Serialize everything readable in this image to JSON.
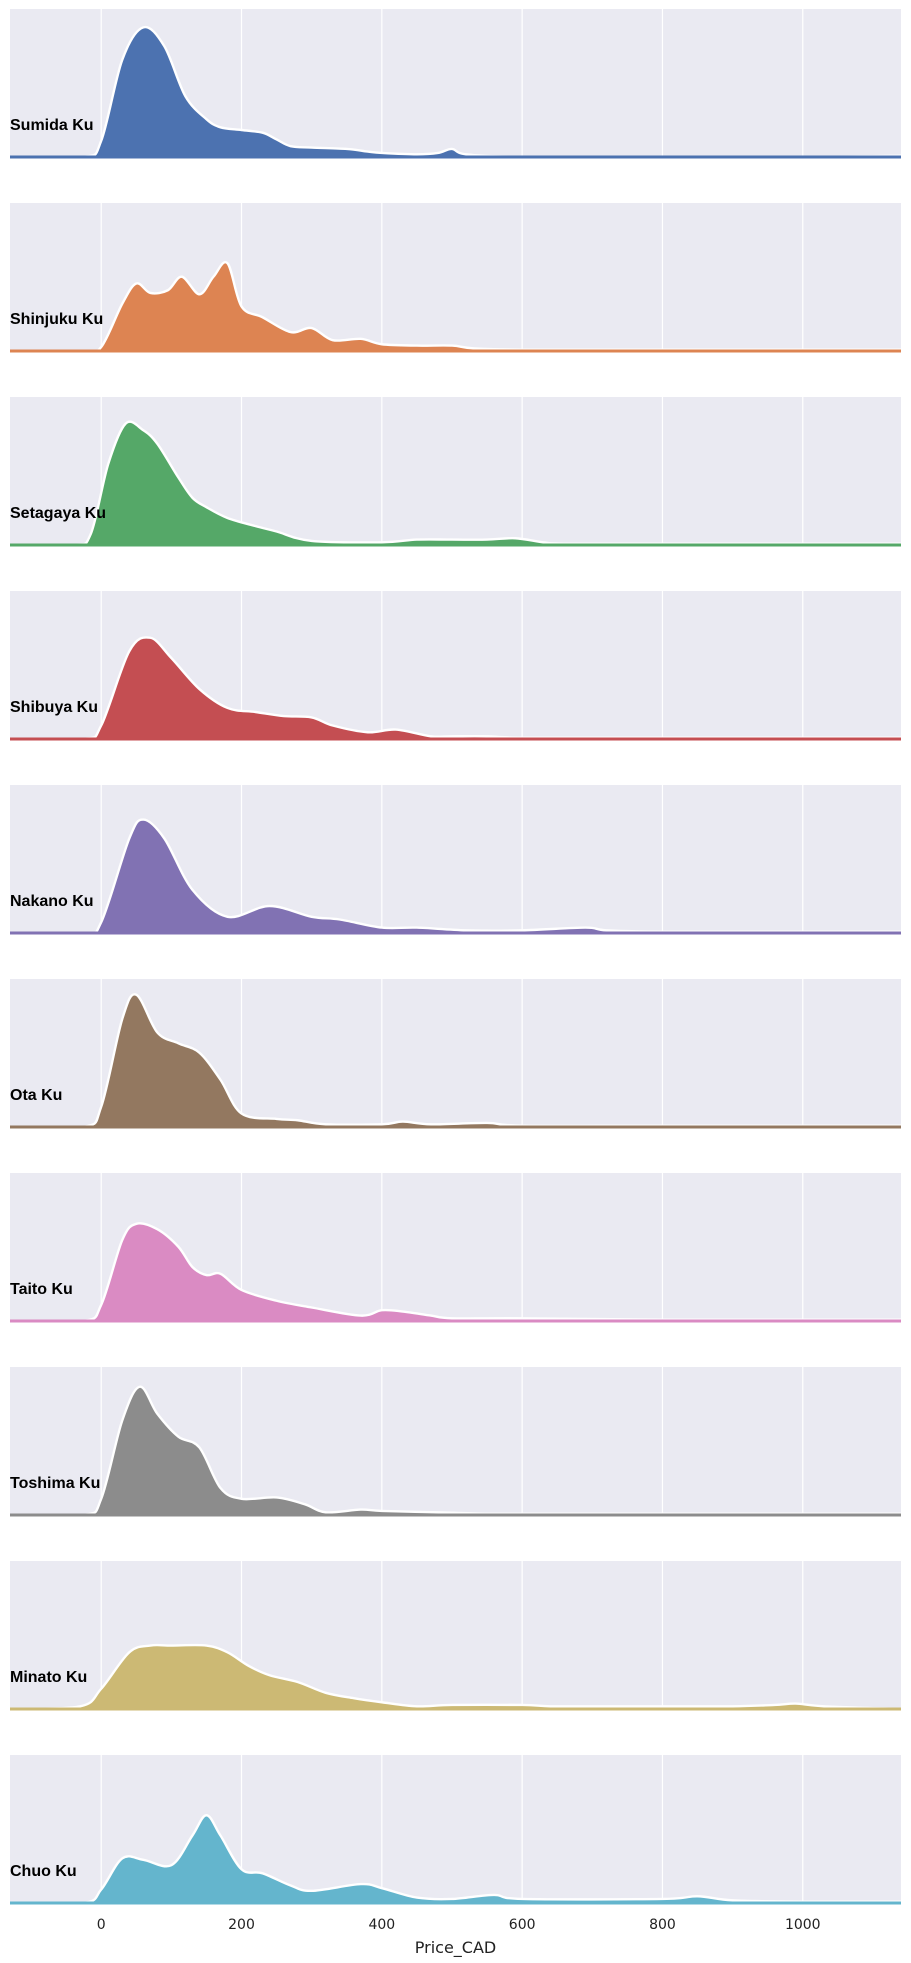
{
  "chart_data": {
    "type": "area",
    "xlabel": "Price_CAD",
    "xlim": [
      -130,
      1140
    ],
    "xticks": [
      0,
      200,
      400,
      600,
      800,
      1000
    ],
    "tick_labels": [
      "0",
      "200",
      "400",
      "600",
      "800",
      "1000"
    ],
    "grid": true,
    "series": [
      {
        "name": "Sumida Ku",
        "color": "#4c72b0",
        "x": [
          -130,
          -25,
          0,
          30,
          60,
          90,
          120,
          150,
          170,
          200,
          230,
          250,
          270,
          300,
          350,
          380,
          400,
          450,
          480,
          500,
          520,
          600,
          800,
          1000,
          1140
        ],
        "y": [
          0.0,
          0.0,
          0.12,
          0.72,
          0.96,
          0.82,
          0.45,
          0.28,
          0.22,
          0.2,
          0.18,
          0.13,
          0.08,
          0.07,
          0.06,
          0.04,
          0.03,
          0.02,
          0.03,
          0.06,
          0.02,
          0.0,
          0.0,
          0.0,
          0.01
        ]
      },
      {
        "name": "Shinjuku Ku",
        "color": "#dd8452",
        "x": [
          -130,
          -25,
          0,
          30,
          50,
          70,
          95,
          115,
          140,
          160,
          180,
          200,
          230,
          270,
          300,
          330,
          370,
          400,
          450,
          500,
          530,
          600,
          800,
          1000,
          1140
        ],
        "y": [
          0.0,
          0.0,
          0.03,
          0.35,
          0.5,
          0.43,
          0.45,
          0.55,
          0.42,
          0.55,
          0.65,
          0.33,
          0.25,
          0.14,
          0.17,
          0.08,
          0.09,
          0.05,
          0.04,
          0.04,
          0.02,
          0.01,
          0.01,
          0.01,
          0.01
        ]
      },
      {
        "name": "Setagaya Ku",
        "color": "#55a868",
        "x": [
          -130,
          -40,
          -15,
          10,
          35,
          60,
          80,
          110,
          130,
          150,
          180,
          220,
          250,
          300,
          400,
          450,
          500,
          550,
          590,
          630,
          660,
          800,
          1000,
          1140
        ],
        "y": [
          0.0,
          0.0,
          0.08,
          0.6,
          0.9,
          0.85,
          0.75,
          0.5,
          0.35,
          0.28,
          0.2,
          0.14,
          0.1,
          0.03,
          0.02,
          0.04,
          0.04,
          0.04,
          0.05,
          0.02,
          0.01,
          0.01,
          0.01,
          0.01
        ]
      },
      {
        "name": "Shibuya Ku",
        "color": "#c44e52",
        "x": [
          -130,
          -25,
          0,
          40,
          70,
          100,
          140,
          180,
          220,
          260,
          300,
          330,
          380,
          420,
          470,
          500,
          550,
          600,
          800,
          1000,
          1140
        ],
        "y": [
          0.0,
          0.0,
          0.1,
          0.65,
          0.75,
          0.6,
          0.37,
          0.23,
          0.2,
          0.17,
          0.16,
          0.1,
          0.05,
          0.07,
          0.02,
          0.02,
          0.02,
          0.01,
          0.01,
          0.01,
          0.01
        ]
      },
      {
        "name": "Nakano Ku",
        "color": "#8172b3",
        "x": [
          -130,
          -25,
          0,
          40,
          60,
          90,
          130,
          180,
          240,
          300,
          340,
          400,
          450,
          520,
          600,
          690,
          720,
          800,
          1000,
          1140
        ],
        "y": [
          0.0,
          0.0,
          0.08,
          0.7,
          0.84,
          0.7,
          0.32,
          0.12,
          0.2,
          0.12,
          0.1,
          0.04,
          0.04,
          0.02,
          0.02,
          0.04,
          0.02,
          0.01,
          0.01,
          0.01
        ]
      },
      {
        "name": "Ota Ku",
        "color": "#937860",
        "x": [
          -130,
          -25,
          0,
          30,
          50,
          80,
          110,
          140,
          170,
          200,
          250,
          280,
          320,
          400,
          430,
          470,
          550,
          600,
          800,
          1000,
          1140
        ],
        "y": [
          0.0,
          0.0,
          0.15,
          0.8,
          0.98,
          0.7,
          0.62,
          0.55,
          0.35,
          0.1,
          0.06,
          0.05,
          0.02,
          0.02,
          0.04,
          0.02,
          0.03,
          0.01,
          0.01,
          0.01,
          0.01
        ]
      },
      {
        "name": "Taito Ku",
        "color": "#da8bc3",
        "x": [
          -130,
          -25,
          0,
          30,
          50,
          80,
          110,
          130,
          150,
          170,
          200,
          250,
          300,
          370,
          400,
          430,
          470,
          500,
          600,
          800,
          1000,
          1140
        ],
        "y": [
          0.0,
          0.0,
          0.12,
          0.6,
          0.72,
          0.68,
          0.55,
          0.4,
          0.34,
          0.35,
          0.23,
          0.15,
          0.1,
          0.04,
          0.08,
          0.07,
          0.04,
          0.02,
          0.02,
          0.01,
          0.01,
          0.01
        ]
      },
      {
        "name": "Toshima Ku",
        "color": "#8c8c8c",
        "x": [
          -130,
          -25,
          0,
          30,
          55,
          80,
          110,
          140,
          170,
          200,
          250,
          290,
          320,
          370,
          400,
          480,
          550,
          600,
          800,
          1000,
          1140
        ],
        "y": [
          0.0,
          0.0,
          0.12,
          0.7,
          0.95,
          0.75,
          0.58,
          0.5,
          0.2,
          0.12,
          0.13,
          0.08,
          0.02,
          0.04,
          0.03,
          0.02,
          0.01,
          0.01,
          0.01,
          0.01,
          0.01
        ]
      },
      {
        "name": "Minato Ku",
        "color": "#ccb974",
        "x": [
          -130,
          -30,
          0,
          40,
          70,
          100,
          150,
          180,
          210,
          240,
          280,
          320,
          360,
          400,
          450,
          500,
          600,
          640,
          700,
          800,
          900,
          960,
          990,
          1030,
          1140
        ],
        "y": [
          0.0,
          0.02,
          0.15,
          0.42,
          0.47,
          0.47,
          0.47,
          0.42,
          0.32,
          0.25,
          0.2,
          0.12,
          0.08,
          0.05,
          0.02,
          0.03,
          0.03,
          0.02,
          0.02,
          0.02,
          0.02,
          0.03,
          0.04,
          0.02,
          0.0
        ]
      },
      {
        "name": "Chuo Ku",
        "color": "#64b5cd",
        "x": [
          -130,
          -25,
          0,
          30,
          60,
          100,
          130,
          150,
          170,
          200,
          230,
          270,
          300,
          370,
          400,
          450,
          500,
          560,
          600,
          800,
          850,
          900,
          1000,
          1140
        ],
        "y": [
          0.0,
          0.0,
          0.1,
          0.33,
          0.32,
          0.28,
          0.5,
          0.65,
          0.5,
          0.25,
          0.22,
          0.13,
          0.09,
          0.14,
          0.11,
          0.04,
          0.03,
          0.06,
          0.03,
          0.03,
          0.05,
          0.02,
          0.01,
          0.01
        ]
      }
    ]
  }
}
